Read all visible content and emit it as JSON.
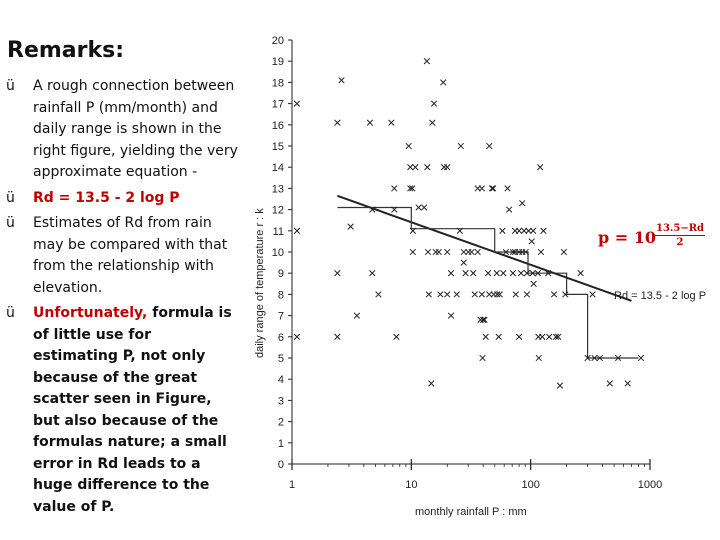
{
  "slide": {
    "title": "Remarks:",
    "check_glyph": "ü",
    "bullets": {
      "b1": "A rough connection between rainfall P (mm/month) and daily range is shown in the right figure, yielding the very approximate equation -",
      "b2_eq": "Rd = 13.5 - 2 log P",
      "b3": "Estimates of Rd from rain may be compared with that from the relationship with elevation.",
      "b4_highlight": "Unfortunately,",
      "b4_rest": " formula is of little use for estimating P, not only because of the great scatter seen in Figure, but also because of the formulas nature; a small error in Rd leads to a huge difference to the value of P."
    },
    "formula": {
      "lhs": "p = 10",
      "exp_num": "13.5−Rd",
      "exp_den": "2"
    }
  },
  "chart_data": {
    "type": "scatter",
    "xlabel": "monthly rainfall P : mm",
    "ylabel": "daily range of temperature r : k",
    "x_scale": "log",
    "xlim": [
      1,
      1000
    ],
    "ylim": [
      0,
      20
    ],
    "x_ticks": [
      1,
      10,
      100,
      1000
    ],
    "y_ticks": [
      0,
      1,
      2,
      3,
      4,
      5,
      6,
      7,
      8,
      9,
      10,
      11,
      12,
      13,
      14,
      15,
      16,
      17,
      18,
      19,
      20
    ],
    "marker": "x",
    "annotation": "Rd = 13.5 - 2 log P",
    "points": [
      [
        1.1,
        17
      ],
      [
        1.1,
        11
      ],
      [
        1.1,
        6
      ],
      [
        2.4,
        16.1
      ],
      [
        2.4,
        9
      ],
      [
        2.4,
        6
      ],
      [
        2.6,
        18.1
      ],
      [
        3.1,
        11.2
      ],
      [
        3.5,
        7
      ],
      [
        4.5,
        16.1
      ],
      [
        4.7,
        12
      ],
      [
        4.7,
        9
      ],
      [
        5.3,
        8
      ],
      [
        6.8,
        16.1
      ],
      [
        7.2,
        13
      ],
      [
        7.2,
        12
      ],
      [
        7.5,
        6
      ],
      [
        9.5,
        15
      ],
      [
        9.8,
        14
      ],
      [
        9.8,
        13
      ],
      [
        10.2,
        13
      ],
      [
        10.3,
        11
      ],
      [
        10.3,
        10
      ],
      [
        10.8,
        14
      ],
      [
        11.5,
        12.1
      ],
      [
        12.8,
        12.1
      ],
      [
        13.5,
        19
      ],
      [
        13.6,
        14
      ],
      [
        13.8,
        10
      ],
      [
        14,
        8
      ],
      [
        14.7,
        3.8
      ],
      [
        15,
        16.1
      ],
      [
        15.5,
        17
      ],
      [
        16,
        10
      ],
      [
        17,
        10
      ],
      [
        17.5,
        8
      ],
      [
        18.5,
        18
      ],
      [
        18.8,
        14
      ],
      [
        20,
        14
      ],
      [
        20,
        8
      ],
      [
        20,
        10
      ],
      [
        21.5,
        7
      ],
      [
        21.5,
        9
      ],
      [
        24,
        8
      ],
      [
        25.5,
        11
      ],
      [
        26,
        15
      ],
      [
        27.5,
        10
      ],
      [
        27.5,
        9.5
      ],
      [
        28.5,
        9
      ],
      [
        30,
        10
      ],
      [
        32,
        10
      ],
      [
        33,
        9
      ],
      [
        34,
        8
      ],
      [
        36,
        13
      ],
      [
        36,
        10
      ],
      [
        38,
        6.8
      ],
      [
        39,
        13
      ],
      [
        39,
        8
      ],
      [
        39.5,
        5
      ],
      [
        40,
        6.8
      ],
      [
        41,
        6.8
      ],
      [
        42,
        6
      ],
      [
        44,
        9
      ],
      [
        45,
        8
      ],
      [
        45,
        15
      ],
      [
        47.5,
        13
      ],
      [
        48.5,
        13
      ],
      [
        49,
        8
      ],
      [
        52,
        9
      ],
      [
        52.5,
        8
      ],
      [
        54,
        6
      ],
      [
        55,
        8
      ],
      [
        58,
        11
      ],
      [
        59,
        9
      ],
      [
        62,
        10
      ],
      [
        64,
        13
      ],
      [
        66,
        12
      ],
      [
        71,
        10
      ],
      [
        71,
        9
      ],
      [
        74,
        10
      ],
      [
        74,
        11
      ],
      [
        75,
        8
      ],
      [
        80,
        10
      ],
      [
        80,
        11
      ],
      [
        80,
        6
      ],
      [
        83,
        9
      ],
      [
        85,
        10
      ],
      [
        85,
        12.3
      ],
      [
        88,
        11
      ],
      [
        91,
        10
      ],
      [
        93,
        9
      ],
      [
        93,
        8
      ],
      [
        96,
        11
      ],
      [
        102,
        10.5
      ],
      [
        104,
        9
      ],
      [
        105,
        11
      ],
      [
        106,
        8.5
      ],
      [
        115,
        9
      ],
      [
        116,
        6
      ],
      [
        117,
        5
      ],
      [
        120,
        14
      ],
      [
        122,
        10
      ],
      [
        125,
        6
      ],
      [
        128,
        11
      ],
      [
        140,
        9
      ],
      [
        143,
        6
      ],
      [
        157,
        8
      ],
      [
        163,
        6
      ],
      [
        170,
        6
      ],
      [
        176,
        3.7
      ],
      [
        190,
        10
      ],
      [
        195,
        8
      ],
      [
        262,
        9
      ],
      [
        300,
        5
      ],
      [
        330,
        8
      ],
      [
        343,
        5
      ],
      [
        380,
        5
      ],
      [
        460,
        3.8
      ],
      [
        540,
        5
      ],
      [
        650,
        3.8
      ],
      [
        840,
        5
      ]
    ],
    "regression_line": [
      [
        2.4,
        12.65
      ],
      [
        700,
        7.7
      ]
    ],
    "step_line": [
      [
        2.4,
        12.1
      ],
      [
        10,
        12.1
      ],
      [
        10,
        11.1
      ],
      [
        50,
        11.1
      ],
      [
        50,
        10
      ],
      [
        95,
        10
      ],
      [
        95,
        9
      ],
      [
        200,
        9
      ],
      [
        200,
        8
      ],
      [
        300,
        8
      ],
      [
        300,
        5
      ],
      [
        800,
        5
      ]
    ]
  }
}
